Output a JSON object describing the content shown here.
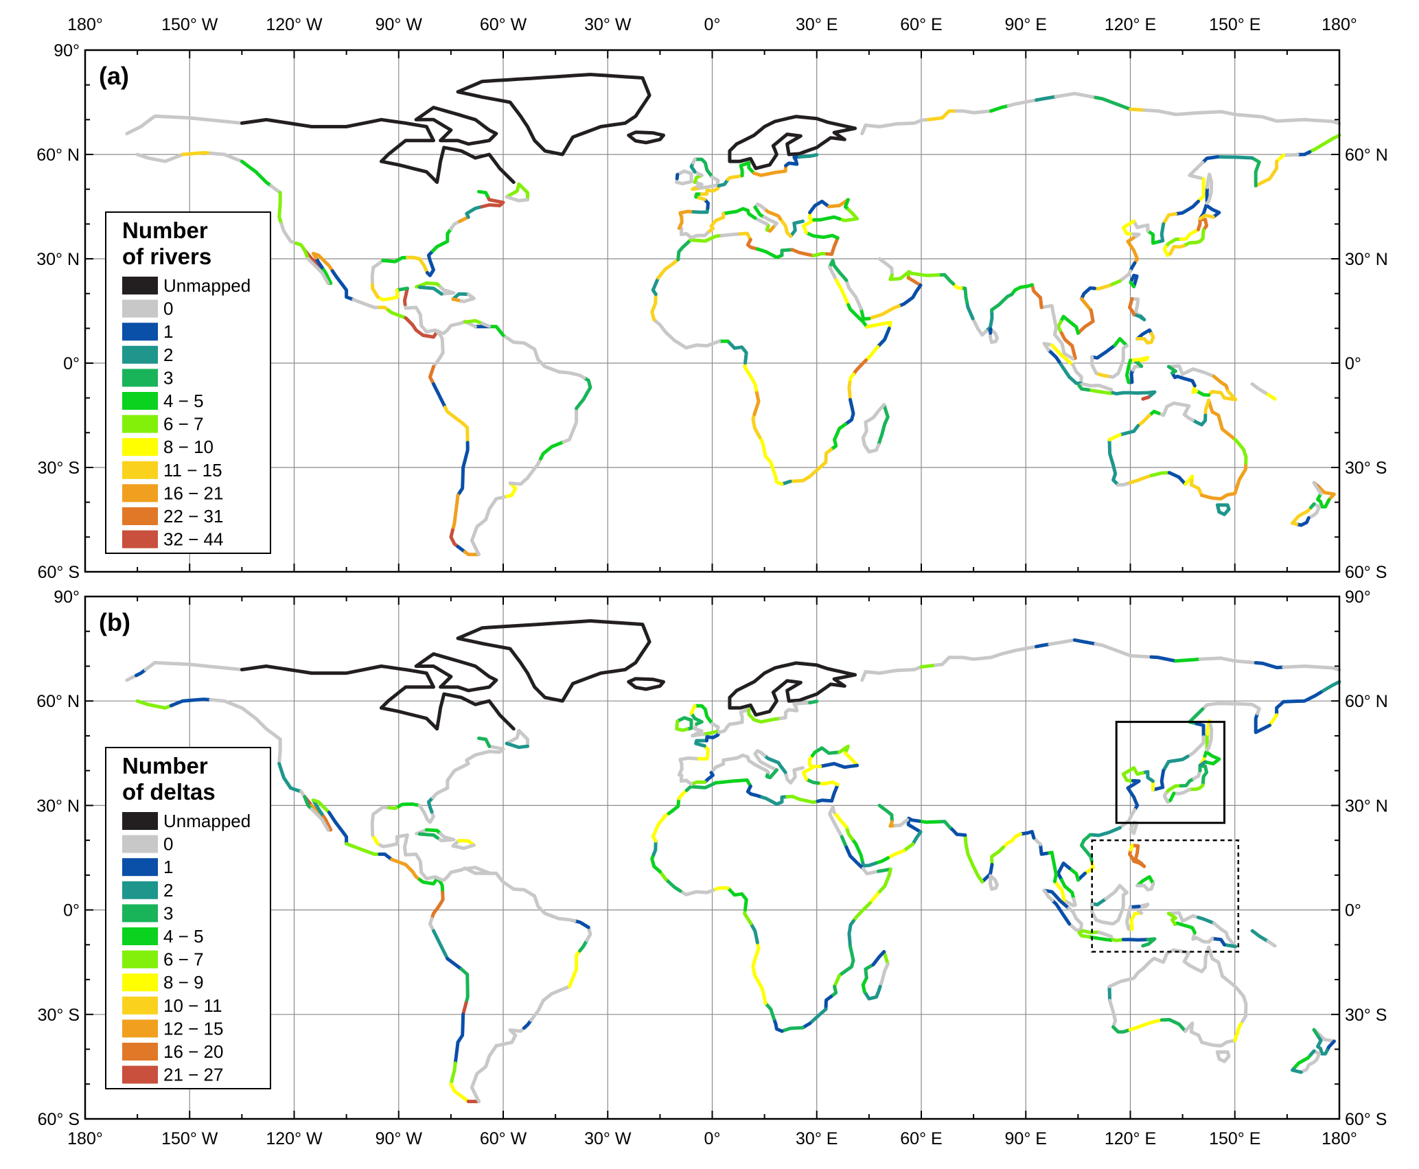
{
  "figure": {
    "panels": [
      {
        "label": "(a)",
        "legend": {
          "title_line1": "Number",
          "title_line2": "of rivers",
          "classes": [
            {
              "label": "Unmapped",
              "color": "#231f20"
            },
            {
              "label": "0",
              "color": "#c8c8c8"
            },
            {
              "label": "1",
              "color": "#0a4fa8"
            },
            {
              "label": "2",
              "color": "#1e968c"
            },
            {
              "label": "3",
              "color": "#19b45a"
            },
            {
              "label": "4 − 5",
              "color": "#0ad21e"
            },
            {
              "label": "6 − 7",
              "color": "#82f00a"
            },
            {
              "label": "8 − 10",
              "color": "#ffff00"
            },
            {
              "label": "11 − 15",
              "color": "#fad21e"
            },
            {
              "label": "16 − 21",
              "color": "#f0a01e"
            },
            {
              "label": "22 − 31",
              "color": "#e07828"
            },
            {
              "label": "32 − 44",
              "color": "#c8503c"
            }
          ]
        }
      },
      {
        "label": "(b)",
        "legend": {
          "title_line1": "Number",
          "title_line2": "of deltas",
          "classes": [
            {
              "label": "Unmapped",
              "color": "#231f20"
            },
            {
              "label": "0",
              "color": "#c8c8c8"
            },
            {
              "label": "1",
              "color": "#0a4fa8"
            },
            {
              "label": "2",
              "color": "#1e968c"
            },
            {
              "label": "3",
              "color": "#19b45a"
            },
            {
              "label": "4 − 5",
              "color": "#0ad21e"
            },
            {
              "label": "6 − 7",
              "color": "#82f00a"
            },
            {
              "label": "8 − 9",
              "color": "#ffff00"
            },
            {
              "label": "10 − 11",
              "color": "#fad21e"
            },
            {
              "label": "12 − 15",
              "color": "#f0a01e"
            },
            {
              "label": "16 − 20",
              "color": "#e07828"
            },
            {
              "label": "21 − 27",
              "color": "#c8503c"
            }
          ]
        }
      }
    ],
    "lon_ticks": [
      "180°",
      "150° W",
      "120° W",
      "90° W",
      "60° W",
      "30° W",
      "0°",
      "30° E",
      "60° E",
      "90° E",
      "120° E",
      "150° E",
      "180°"
    ],
    "lat_ticks": [
      "90°",
      "60° N",
      "30° N",
      "0°",
      "30° S",
      "60° S"
    ],
    "lat_ticks_right": [
      "",
      "60° N",
      "30° N",
      "0°",
      "30° S",
      "60° S"
    ],
    "lat_ticks_right_b": [
      "90°",
      "60° N",
      "30° N",
      "0°",
      "30° S",
      "60° S"
    ]
  }
}
